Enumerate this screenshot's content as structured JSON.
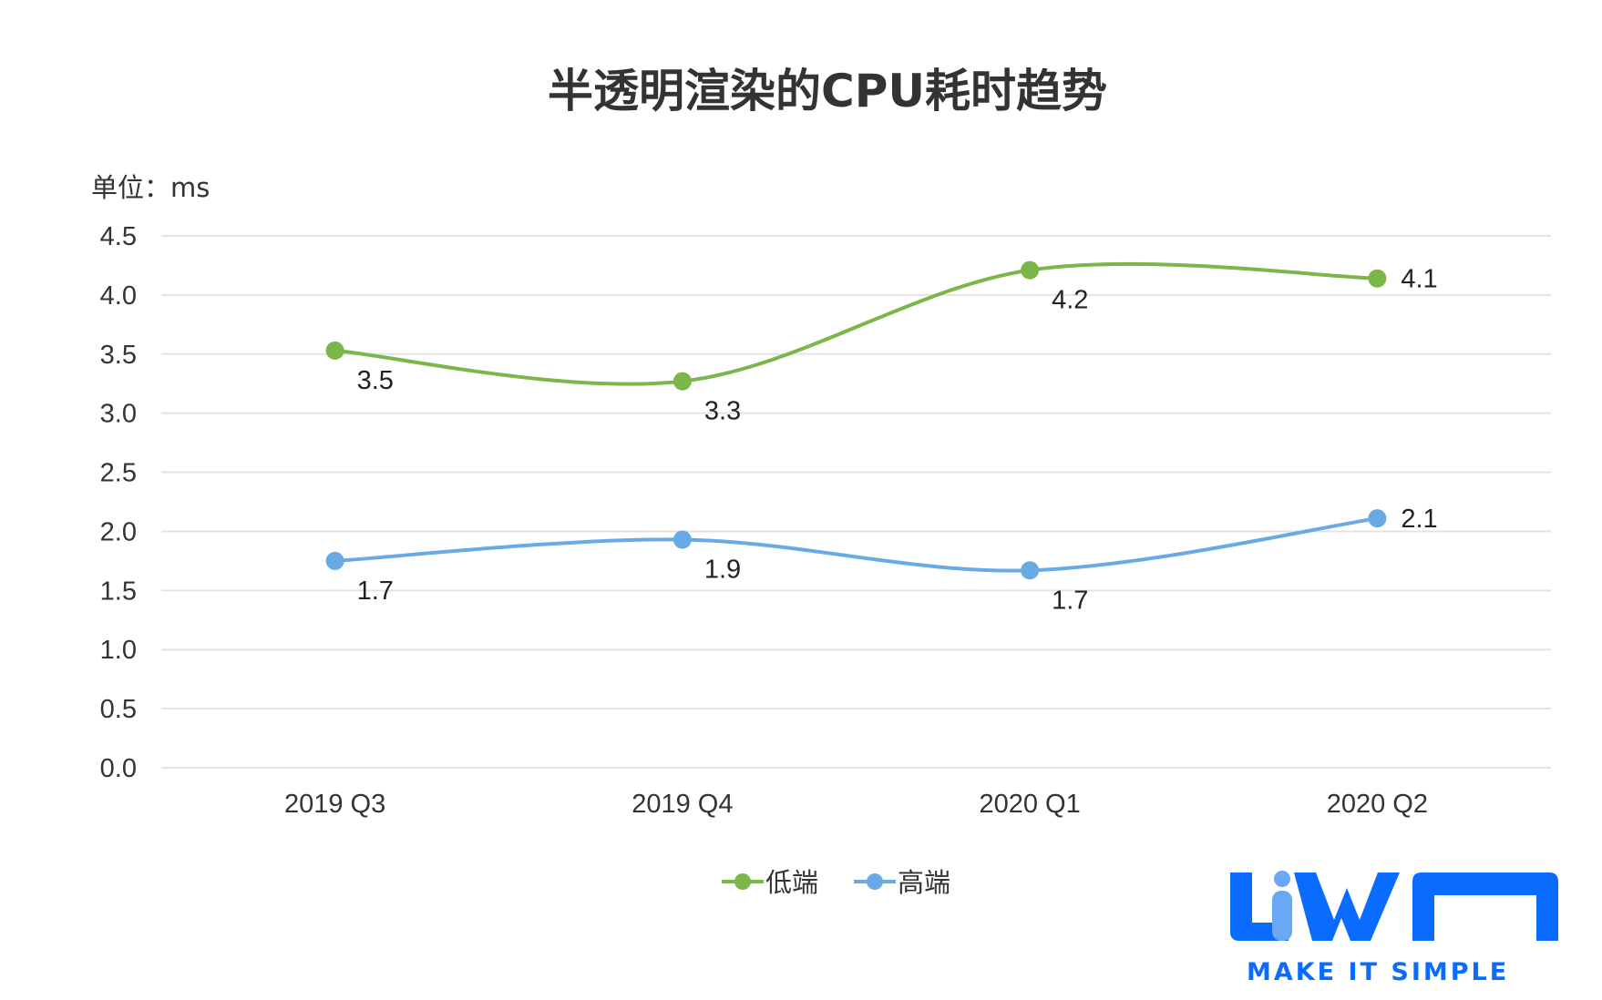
{
  "chart_data": {
    "type": "line",
    "title": "半透明渲染的CPU耗时趋势",
    "unit_label": "单位：ms",
    "categories": [
      "2019 Q3",
      "2019 Q4",
      "2020 Q1",
      "2020 Q2"
    ],
    "ylim": [
      0,
      4.5
    ],
    "yticks": [
      "0.0",
      "0.5",
      "1.0",
      "1.5",
      "2.0",
      "2.5",
      "3.0",
      "3.5",
      "4.0",
      "4.5"
    ],
    "grid": true,
    "smooth": true,
    "legend_position": "bottom",
    "series": [
      {
        "name": "低端",
        "color": "#7ab648",
        "values": [
          3.53,
          3.27,
          4.21,
          4.14
        ],
        "labels": [
          "3.5",
          "3.3",
          "4.2",
          "4.1"
        ]
      },
      {
        "name": "高端",
        "color": "#6aaae4",
        "values": [
          1.75,
          1.93,
          1.67,
          2.11
        ],
        "labels": [
          "1.7",
          "1.9",
          "1.7",
          "2.1"
        ]
      }
    ]
  },
  "logo": {
    "text": "LiWA",
    "tagline": "MAKE IT SIMPLE",
    "color": "#0a6cff",
    "accent": "#6aa8f5"
  }
}
